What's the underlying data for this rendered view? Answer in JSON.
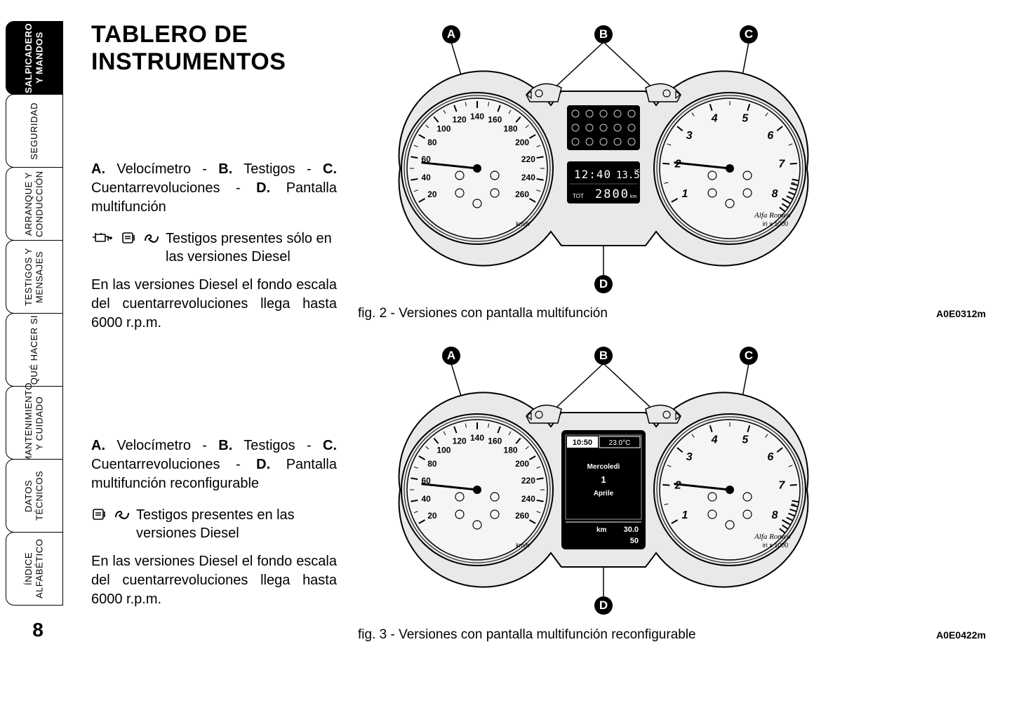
{
  "page_number": "8",
  "sidebar": {
    "tabs": [
      {
        "label": "SALPICADERO Y MANDOS",
        "active": true
      },
      {
        "label": "SEGURIDAD",
        "active": false
      },
      {
        "label": "ARRANQUE Y CONDUCCIÓN",
        "active": false
      },
      {
        "label": "TESTIGOS Y MENSAJES",
        "active": false
      },
      {
        "label": "QUÉ HACER SI",
        "active": false
      },
      {
        "label": "MANTENIMIENTO Y CUIDADO",
        "active": false
      },
      {
        "label": "DATOS TÉCNICOS",
        "active": false
      },
      {
        "label": "ÍNDICE ALFABÉTICO",
        "active": false
      }
    ]
  },
  "heading": "TABLERO DE INSTRUMENTOS",
  "section1": {
    "legend_prefix_A": "A.",
    "legend_A": " Velocímetro - ",
    "legend_prefix_B": "B.",
    "legend_B": " Testigos - ",
    "legend_prefix_C": "C.",
    "legend_C": " Cuentarrevoluciones - ",
    "legend_prefix_D": "D.",
    "legend_D": " Pantalla multifunción",
    "diesel_note": "Testigos presentes sólo en las versiones Diesel",
    "diesel_body": "En las versiones Diesel el fondo escala del cuentarrevoluciones llega hasta 6000 r.p.m."
  },
  "section2": {
    "legend_prefix_A": "A.",
    "legend_A": " Velocímetro - ",
    "legend_prefix_B": "B.",
    "legend_B": " Testigos - ",
    "legend_prefix_C": "C.",
    "legend_C": " Cuentarrevoluciones - ",
    "legend_prefix_D": "D.",
    "legend_D": " Pantalla multifunción reconfigurable",
    "diesel_note": "Testigos presentes en las versiones Diesel",
    "diesel_body": "En las versiones Diesel el fondo escala del cuentarrevoluciones llega hasta 6000 r.p.m."
  },
  "figure1": {
    "caption": "fig. 2 - Versiones con pantalla multifunción",
    "code": "A0E0312m",
    "callouts": [
      "A",
      "B",
      "C",
      "D"
    ],
    "display": {
      "time": "12:40",
      "temp": "13.5",
      "temp_unit": "°C",
      "odo_label": "TOT",
      "odo_value": "2800",
      "odo_unit": "km"
    }
  },
  "figure2": {
    "caption": "fig. 3 - Versiones con pantalla multifunción reconfigurable",
    "code": "A0E0422m",
    "callouts": [
      "A",
      "B",
      "C",
      "D"
    ],
    "display": {
      "time": "10:50",
      "temp": "23.0°C",
      "day": "Mercoledì",
      "date_num": "1",
      "month": "Aprile",
      "km_label": "km",
      "km1": "30.0",
      "km2": "50"
    }
  },
  "gauge": {
    "speedo_ticks": [
      "20",
      "40",
      "60",
      "80",
      "100",
      "120",
      "140",
      "160",
      "180",
      "200",
      "220",
      "240",
      "260"
    ],
    "speedo_unit": "km/h",
    "tacho_ticks": [
      "1",
      "2",
      "3",
      "4",
      "5",
      "6",
      "7",
      "8"
    ],
    "tacho_unit": "iri x 1000",
    "brand": "Alfa Romeo",
    "colors": {
      "panel_fill": "#e9e9e9",
      "dial_fill": "#f5f5f5",
      "stroke": "#000000",
      "display_bg": "#000000",
      "display_fg": "#ffffff"
    }
  }
}
